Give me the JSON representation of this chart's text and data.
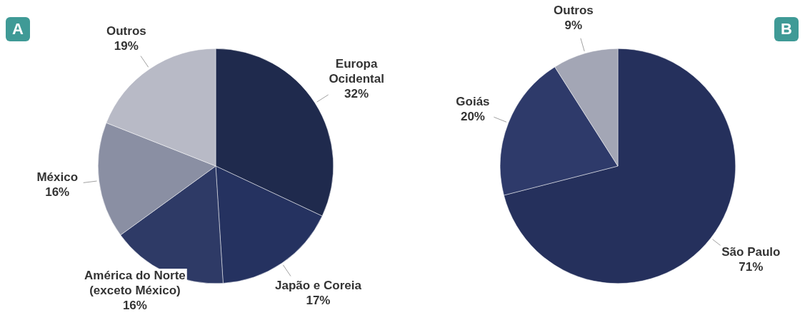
{
  "chart_data": [
    {
      "type": "pie",
      "annotations": [
        "A"
      ],
      "categories": [
        "Europa\nOcidental",
        "Japão e Coreia",
        "América do Norte\n(exceto México)",
        "México",
        "Outros"
      ],
      "values": [
        32,
        17,
        16,
        16,
        19
      ],
      "value_labels": [
        "32%",
        "17%",
        "16%",
        "16%",
        "19%"
      ],
      "colors": [
        "#1f2a4d",
        "#253260",
        "#2e3a66",
        "#8a8fa3",
        "#b8bac6"
      ],
      "legend": false
    },
    {
      "type": "pie",
      "annotations": [
        "B"
      ],
      "categories": [
        "São Paulo",
        "Goiás",
        "Outros"
      ],
      "values": [
        71,
        20,
        9
      ],
      "value_labels": [
        "71%",
        "20%",
        "9%"
      ],
      "colors": [
        "#25305c",
        "#2e3a6a",
        "#a3a6b5"
      ],
      "legend": false
    }
  ]
}
